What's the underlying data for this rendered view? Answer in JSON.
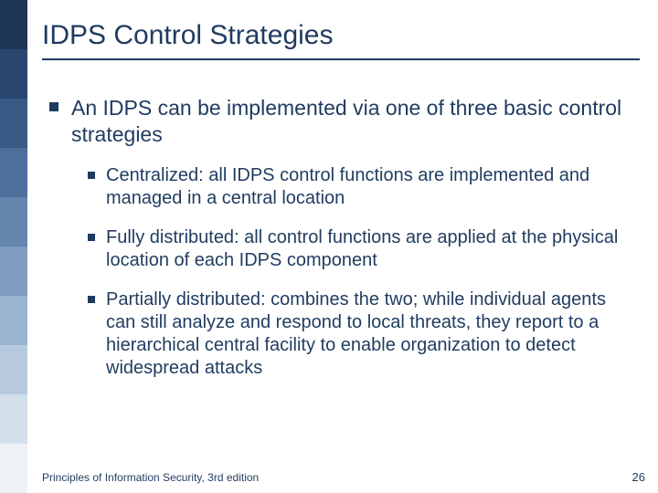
{
  "colors": {
    "text_primary": "#1f3b5f",
    "background": "#ffffff",
    "sidebar_gradient": [
      "#1f3556",
      "#2b466e",
      "#3a5a86",
      "#4d6f9b",
      "#6486ae",
      "#7e9cbf",
      "#9ab3cf",
      "#b7cadd",
      "#d3e0ec",
      "#eef3f8"
    ]
  },
  "title": "IDPS Control Strategies",
  "title_fontsize": 30,
  "body_fontsize_l1": 23,
  "body_fontsize_l2": 20,
  "bullets": {
    "l1": [
      "An IDPS can be implemented via one of three basic control strategies"
    ],
    "l2": [
      "Centralized: all IDPS control functions are implemented and managed in a central location",
      "Fully distributed: all control functions are applied at the physical location of each IDPS component",
      "Partially distributed: combines the  two; while individual agents can still analyze and respond to local threats, they report to a hierarchical central facility to enable organization to detect widespread attacks"
    ]
  },
  "footer": {
    "text": "Principles of Information Security, 3rd edition",
    "page": "26"
  }
}
